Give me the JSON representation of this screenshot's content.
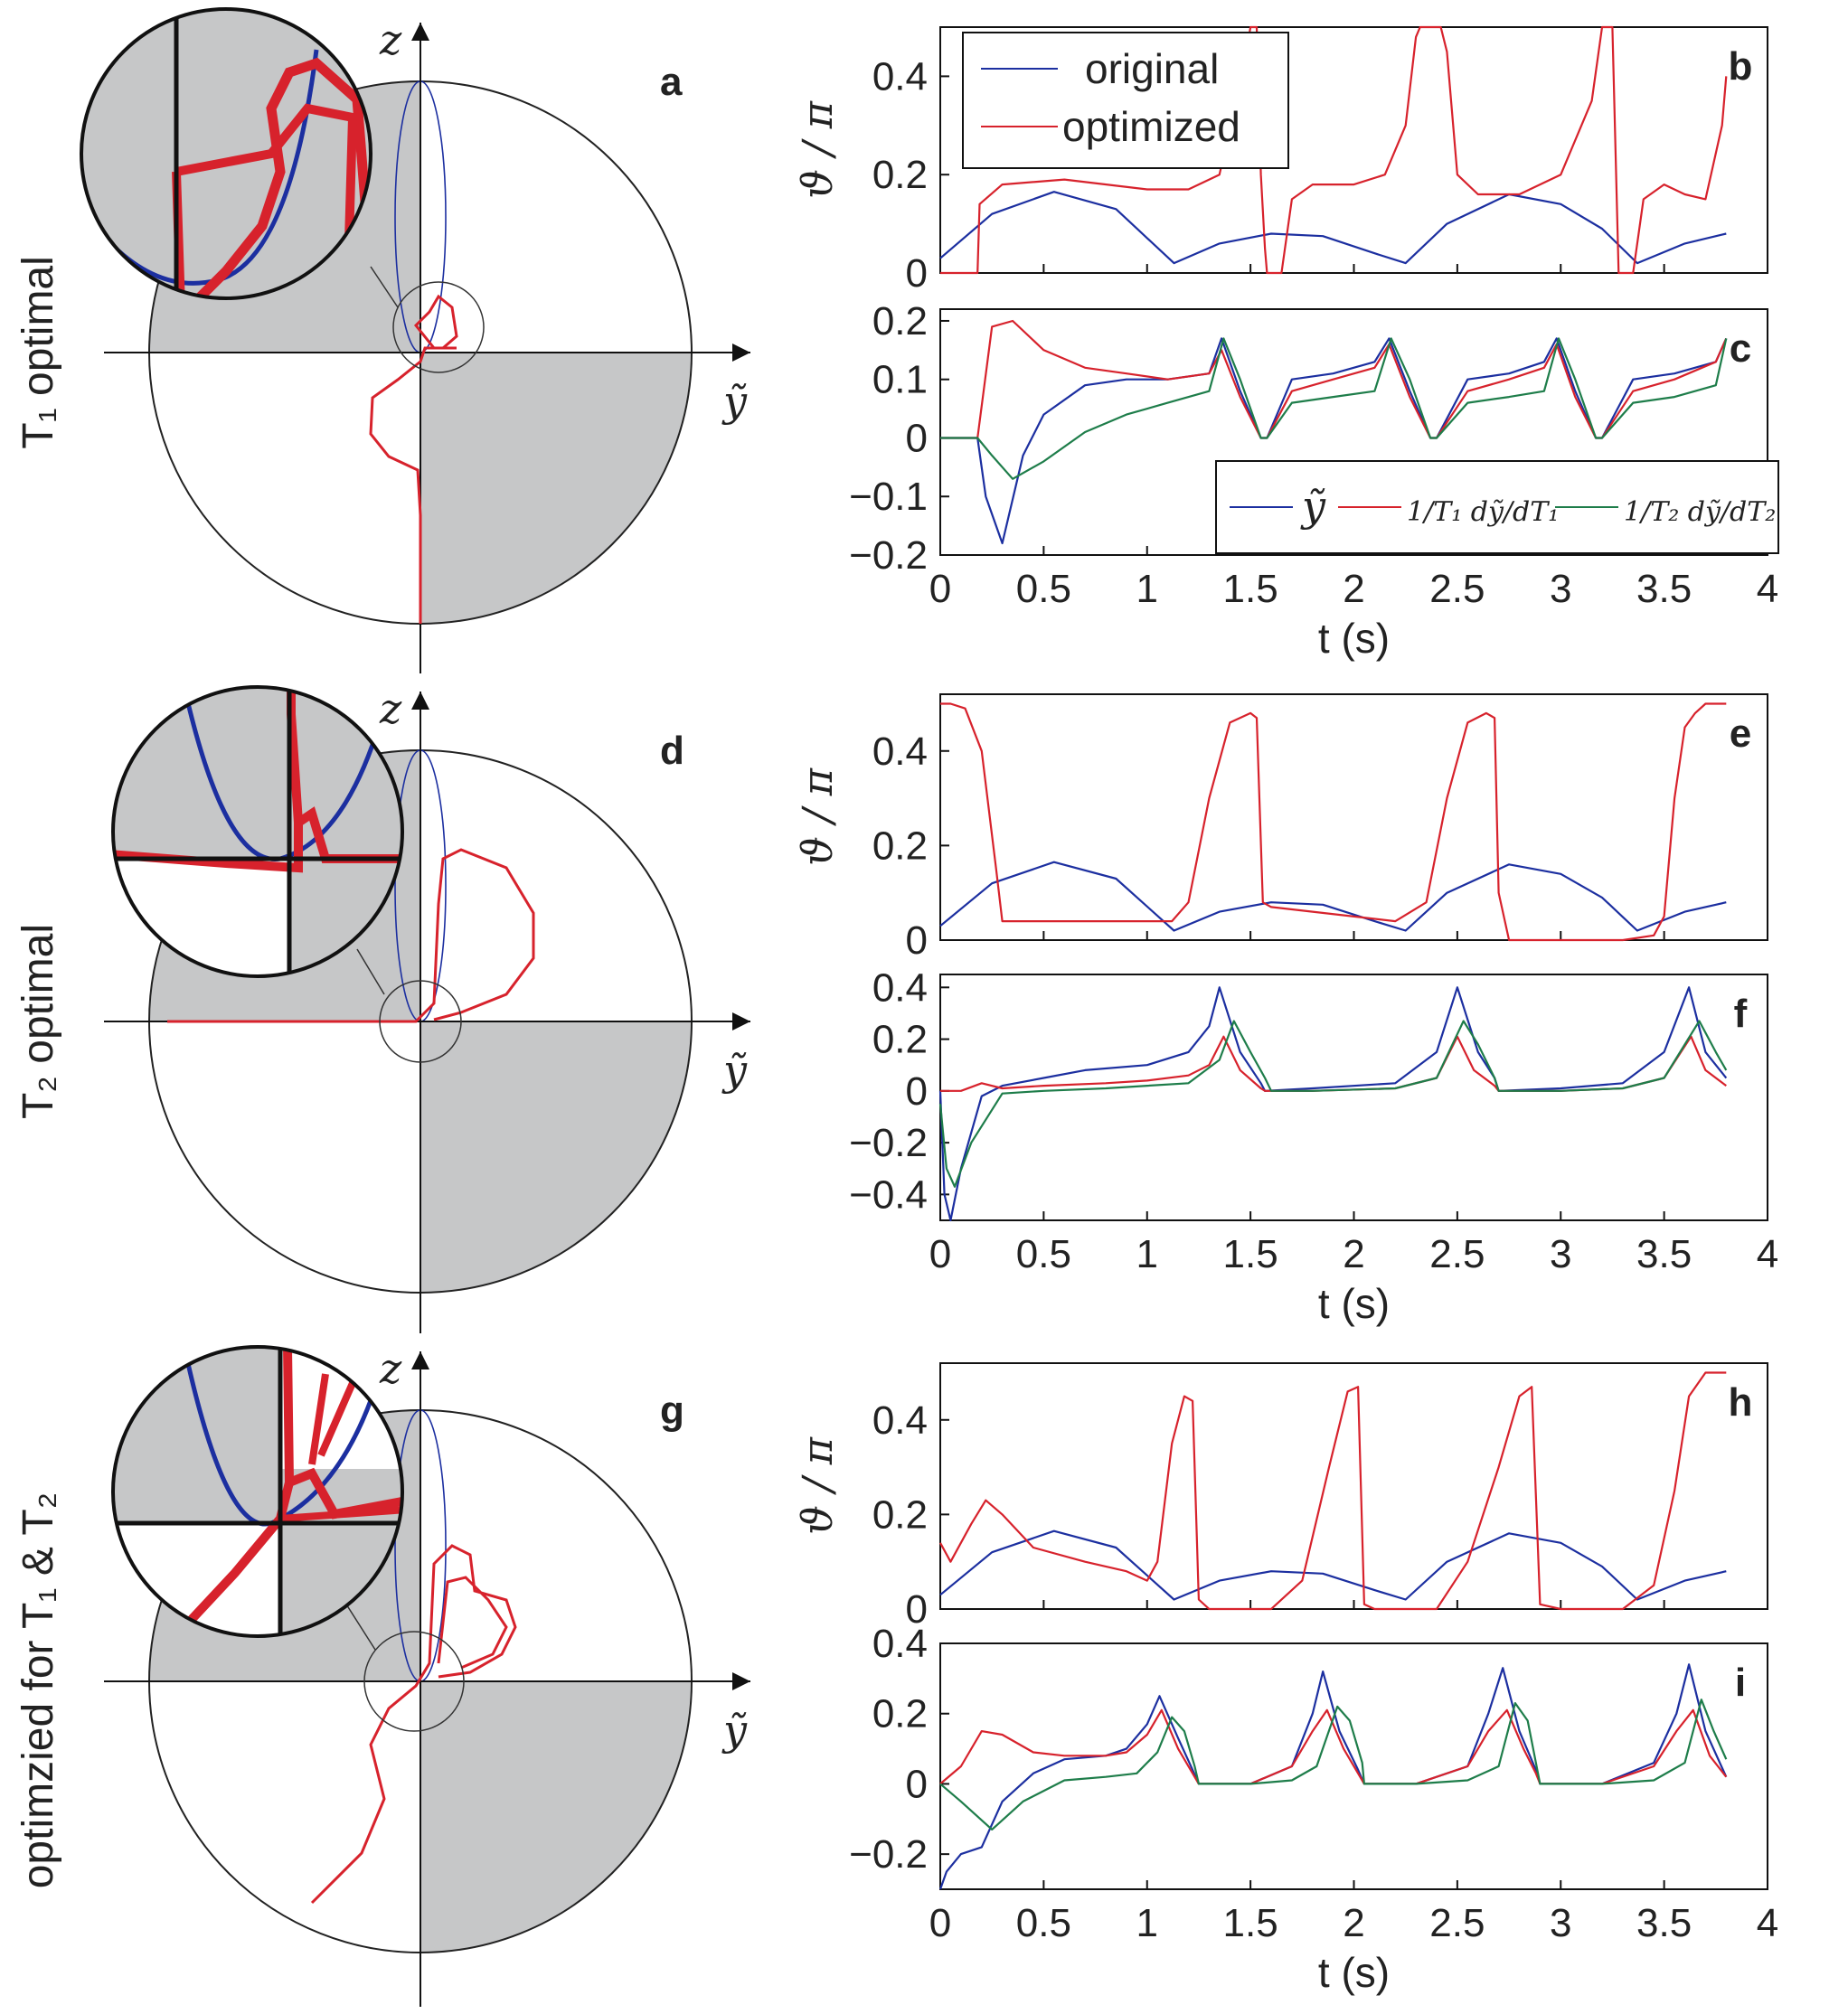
{
  "colors": {
    "blue": "#1c2fa0",
    "red": "#d7222c",
    "green": "#1e7d4a",
    "grey": "#c6c7c8",
    "axis": "#111111"
  },
  "rows": [
    {
      "row_label": "T₁ optimal",
      "circle_label": "a",
      "top_label": "b",
      "bottom_label": "c"
    },
    {
      "row_label": "T₂ optimal",
      "circle_label": "d",
      "top_label": "e",
      "bottom_label": "f"
    },
    {
      "row_label": "optimzied for T₁ & T₂",
      "circle_label": "g",
      "top_label": "h",
      "bottom_label": "i"
    }
  ],
  "circle_axes": {
    "z_label": "z",
    "y_label": "ỹ"
  },
  "legend_top": {
    "original": "original",
    "optimized": "optimized"
  },
  "legend_bottom": {
    "y": "ỹ",
    "d1": "1/T₁ dỹ/dT₁",
    "d2": "1/T₂ dỹ/dT₂"
  },
  "chart_data": [
    {
      "panel": "b",
      "type": "line",
      "xlabel": "",
      "ylabel": "ϑ / π",
      "xlim": [
        0,
        4
      ],
      "ylim": [
        0,
        0.5
      ],
      "yticks": [
        "0",
        "0.2",
        "0.4"
      ],
      "series": [
        {
          "name": "original",
          "x": [
            0,
            0.25,
            0.55,
            0.85,
            1.13,
            1.35,
            1.6,
            1.85,
            2.1,
            2.25,
            2.45,
            2.75,
            3.0,
            3.2,
            3.37,
            3.6,
            3.8
          ],
          "y": [
            0.03,
            0.12,
            0.165,
            0.13,
            0.02,
            0.06,
            0.08,
            0.075,
            0.04,
            0.02,
            0.1,
            0.16,
            0.14,
            0.09,
            0.02,
            0.06,
            0.08
          ]
        },
        {
          "name": "optimized",
          "x": [
            0,
            0.18,
            0.19,
            0.3,
            0.6,
            1.0,
            1.2,
            1.35,
            1.48,
            1.5,
            1.53,
            1.55,
            1.57,
            1.58,
            1.6,
            1.65,
            1.7,
            1.8,
            2.0,
            2.15,
            2.25,
            2.3,
            2.32,
            2.4,
            2.42,
            2.45,
            2.5,
            2.6,
            2.8,
            3.0,
            3.15,
            3.2,
            3.25,
            3.28,
            3.3,
            3.35,
            3.4,
            3.5,
            3.6,
            3.7,
            3.78,
            3.8
          ],
          "y": [
            0,
            0,
            0.14,
            0.18,
            0.19,
            0.17,
            0.17,
            0.2,
            0.45,
            0.5,
            0.5,
            0.2,
            0.05,
            0.0,
            0.0,
            0.0,
            0.15,
            0.18,
            0.18,
            0.2,
            0.3,
            0.48,
            0.5,
            0.5,
            0.5,
            0.45,
            0.2,
            0.16,
            0.16,
            0.2,
            0.35,
            0.5,
            0.5,
            0.0,
            0.0,
            0.0,
            0.15,
            0.18,
            0.16,
            0.15,
            0.3,
            0.4
          ]
        }
      ]
    },
    {
      "panel": "c",
      "type": "line",
      "xlabel": "t (s)",
      "ylabel": "",
      "xlim": [
        0,
        4
      ],
      "ylim": [
        -0.2,
        0.22
      ],
      "xticks": [
        "0",
        "0.5",
        "1",
        "1.5",
        "2",
        "2.5",
        "3",
        "3.5",
        "4"
      ],
      "yticks": [
        "−0.2",
        "−0.1",
        "0",
        "0.1",
        "0.2"
      ],
      "series": [
        {
          "name": "ỹ",
          "x": [
            0,
            0.18,
            0.22,
            0.3,
            0.4,
            0.5,
            0.7,
            0.9,
            1.1,
            1.3,
            1.36,
            1.45,
            1.55,
            1.58,
            1.7,
            1.9,
            2.1,
            2.17,
            2.27,
            2.37,
            2.4,
            2.55,
            2.75,
            2.92,
            2.98,
            3.07,
            3.17,
            3.2,
            3.35,
            3.55,
            3.75,
            3.8
          ],
          "y": [
            0,
            0,
            -0.1,
            -0.18,
            -0.03,
            0.04,
            0.09,
            0.1,
            0.1,
            0.11,
            0.17,
            0.08,
            0.0,
            0.0,
            0.1,
            0.11,
            0.13,
            0.17,
            0.08,
            0.0,
            0.0,
            0.1,
            0.11,
            0.13,
            0.17,
            0.08,
            0.0,
            0.0,
            0.1,
            0.11,
            0.13,
            0.17
          ]
        },
        {
          "name": "1/T₁ dỹ/dT₁",
          "x": [
            0,
            0.18,
            0.25,
            0.35,
            0.5,
            0.7,
            0.9,
            1.1,
            1.3,
            1.36,
            1.45,
            1.55,
            1.58,
            1.7,
            1.9,
            2.1,
            2.17,
            2.27,
            2.37,
            2.4,
            2.55,
            2.75,
            2.92,
            2.98,
            3.07,
            3.17,
            3.2,
            3.35,
            3.55,
            3.75,
            3.8
          ],
          "y": [
            0,
            0,
            0.19,
            0.2,
            0.15,
            0.12,
            0.11,
            0.1,
            0.11,
            0.15,
            0.07,
            0.0,
            0.0,
            0.08,
            0.1,
            0.12,
            0.16,
            0.07,
            0.0,
            0.0,
            0.08,
            0.1,
            0.12,
            0.16,
            0.07,
            0.0,
            0.0,
            0.08,
            0.1,
            0.13,
            0.17
          ]
        },
        {
          "name": "1/T₂ dỹ/dT₂",
          "x": [
            0,
            0.18,
            0.25,
            0.35,
            0.5,
            0.7,
            0.9,
            1.1,
            1.3,
            1.37,
            1.45,
            1.55,
            1.58,
            1.7,
            1.9,
            2.1,
            2.18,
            2.27,
            2.37,
            2.4,
            2.55,
            2.75,
            2.92,
            2.99,
            3.07,
            3.17,
            3.2,
            3.35,
            3.55,
            3.75,
            3.8
          ],
          "y": [
            0,
            0,
            -0.03,
            -0.07,
            -0.04,
            0.01,
            0.04,
            0.06,
            0.08,
            0.17,
            0.1,
            0.0,
            0.0,
            0.06,
            0.07,
            0.08,
            0.17,
            0.1,
            0.0,
            0.0,
            0.06,
            0.07,
            0.08,
            0.17,
            0.1,
            0.0,
            0.0,
            0.06,
            0.07,
            0.09,
            0.17
          ]
        }
      ]
    },
    {
      "panel": "e",
      "type": "line",
      "xlabel": "",
      "ylabel": "ϑ / π",
      "xlim": [
        0,
        4
      ],
      "ylim": [
        0,
        0.52
      ],
      "yticks": [
        "0",
        "0.2",
        "0.4"
      ],
      "series": [
        {
          "name": "original",
          "x": [
            0,
            0.25,
            0.55,
            0.85,
            1.13,
            1.35,
            1.6,
            1.85,
            2.1,
            2.25,
            2.45,
            2.75,
            3.0,
            3.2,
            3.37,
            3.6,
            3.8
          ],
          "y": [
            0.03,
            0.12,
            0.165,
            0.13,
            0.02,
            0.06,
            0.08,
            0.075,
            0.04,
            0.02,
            0.1,
            0.16,
            0.14,
            0.09,
            0.02,
            0.06,
            0.08
          ]
        },
        {
          "name": "optimized",
          "x": [
            0,
            0.05,
            0.12,
            0.2,
            0.27,
            0.3,
            0.4,
            0.7,
            1.0,
            1.12,
            1.2,
            1.3,
            1.4,
            1.5,
            1.53,
            1.56,
            1.6,
            1.8,
            2.2,
            2.35,
            2.45,
            2.55,
            2.64,
            2.68,
            2.7,
            2.75,
            3.0,
            3.3,
            3.45,
            3.5,
            3.55,
            3.6,
            3.65,
            3.7,
            3.8
          ],
          "y": [
            0.5,
            0.5,
            0.49,
            0.4,
            0.15,
            0.04,
            0.04,
            0.04,
            0.04,
            0.04,
            0.08,
            0.3,
            0.46,
            0.48,
            0.47,
            0.08,
            0.07,
            0.06,
            0.04,
            0.08,
            0.3,
            0.46,
            0.48,
            0.47,
            0.1,
            0.0,
            0.0,
            0.0,
            0.01,
            0.05,
            0.3,
            0.45,
            0.48,
            0.5,
            0.5
          ]
        }
      ]
    },
    {
      "panel": "f",
      "type": "line",
      "xlabel": "t (s)",
      "ylabel": "",
      "xlim": [
        0,
        4
      ],
      "ylim": [
        -0.5,
        0.45
      ],
      "xticks": [
        "0",
        "0.5",
        "1",
        "1.5",
        "2",
        "2.5",
        "3",
        "3.5",
        "4"
      ],
      "yticks": [
        "−0.4",
        "−0.2",
        "0",
        "0.2",
        "0.4"
      ],
      "series": [
        {
          "name": "ỹ",
          "x": [
            0,
            0.02,
            0.05,
            0.1,
            0.2,
            0.3,
            0.5,
            0.7,
            1.0,
            1.2,
            1.3,
            1.35,
            1.45,
            1.55,
            1.57,
            1.8,
            2.2,
            2.4,
            2.5,
            2.6,
            2.68,
            2.7,
            3.0,
            3.3,
            3.5,
            3.62,
            3.7,
            3.8
          ],
          "y": [
            0.0,
            -0.4,
            -0.5,
            -0.3,
            -0.02,
            0.02,
            0.05,
            0.08,
            0.1,
            0.15,
            0.25,
            0.4,
            0.15,
            0.03,
            0.0,
            0.01,
            0.03,
            0.15,
            0.4,
            0.15,
            0.05,
            0.0,
            0.01,
            0.03,
            0.15,
            0.4,
            0.15,
            0.05
          ]
        },
        {
          "name": "1/T₁ dỹ/dT₁",
          "x": [
            0,
            0.1,
            0.2,
            0.3,
            0.5,
            0.8,
            1.0,
            1.2,
            1.3,
            1.37,
            1.45,
            1.55,
            1.57,
            1.8,
            2.2,
            2.4,
            2.5,
            2.58,
            2.68,
            2.7,
            3.0,
            3.3,
            3.5,
            3.63,
            3.7,
            3.8
          ],
          "y": [
            0.0,
            0.0,
            0.03,
            0.01,
            0.02,
            0.03,
            0.04,
            0.06,
            0.1,
            0.21,
            0.08,
            0.01,
            0.0,
            0.0,
            0.01,
            0.05,
            0.21,
            0.08,
            0.02,
            0.0,
            0.0,
            0.01,
            0.05,
            0.21,
            0.08,
            0.02
          ]
        },
        {
          "name": "1/T₂ dỹ/dT₂",
          "x": [
            0,
            0.03,
            0.07,
            0.15,
            0.3,
            0.5,
            0.8,
            1.0,
            1.2,
            1.35,
            1.42,
            1.5,
            1.57,
            1.6,
            1.8,
            2.2,
            2.4,
            2.53,
            2.6,
            2.68,
            2.7,
            3.0,
            3.3,
            3.5,
            3.67,
            3.75,
            3.8
          ],
          "y": [
            -0.05,
            -0.3,
            -0.37,
            -0.2,
            -0.01,
            0.0,
            0.01,
            0.02,
            0.03,
            0.12,
            0.27,
            0.15,
            0.05,
            0.0,
            0.0,
            0.01,
            0.05,
            0.27,
            0.18,
            0.05,
            0.0,
            0.0,
            0.01,
            0.05,
            0.27,
            0.15,
            0.08
          ]
        }
      ]
    },
    {
      "panel": "h",
      "type": "line",
      "xlabel": "",
      "ylabel": "ϑ / π",
      "xlim": [
        0,
        4
      ],
      "ylim": [
        0,
        0.52
      ],
      "yticks": [
        "0",
        "0.2",
        "0.4"
      ],
      "series": [
        {
          "name": "original",
          "x": [
            0,
            0.25,
            0.55,
            0.85,
            1.13,
            1.35,
            1.6,
            1.85,
            2.1,
            2.25,
            2.45,
            2.75,
            3.0,
            3.2,
            3.37,
            3.6,
            3.8
          ],
          "y": [
            0.03,
            0.12,
            0.165,
            0.13,
            0.02,
            0.06,
            0.08,
            0.075,
            0.04,
            0.02,
            0.1,
            0.16,
            0.14,
            0.09,
            0.02,
            0.06,
            0.08
          ]
        },
        {
          "name": "optimized",
          "x": [
            0,
            0.05,
            0.15,
            0.22,
            0.3,
            0.45,
            0.7,
            0.9,
            1.0,
            1.05,
            1.12,
            1.18,
            1.22,
            1.25,
            1.3,
            1.6,
            1.75,
            1.88,
            1.97,
            2.02,
            2.05,
            2.1,
            2.4,
            2.55,
            2.7,
            2.8,
            2.86,
            2.9,
            3.0,
            3.3,
            3.45,
            3.55,
            3.62,
            3.7,
            3.8
          ],
          "y": [
            0.14,
            0.1,
            0.18,
            0.23,
            0.2,
            0.13,
            0.1,
            0.08,
            0.06,
            0.1,
            0.35,
            0.45,
            0.44,
            0.02,
            0.0,
            0.0,
            0.06,
            0.3,
            0.46,
            0.47,
            0.01,
            0.0,
            0.0,
            0.1,
            0.3,
            0.45,
            0.47,
            0.01,
            0.0,
            0.0,
            0.05,
            0.25,
            0.45,
            0.5,
            0.5
          ]
        }
      ]
    },
    {
      "panel": "i",
      "type": "line",
      "xlabel": "t (s)",
      "ylabel": "",
      "xlim": [
        0,
        4
      ],
      "ylim": [
        -0.3,
        0.4
      ],
      "xticks": [
        "0",
        "0.5",
        "1",
        "1.5",
        "2",
        "2.5",
        "3",
        "3.5",
        "4"
      ],
      "yticks": [
        "−0.2",
        "0",
        "0.2",
        "0.4"
      ],
      "series": [
        {
          "name": "ỹ",
          "x": [
            0,
            0.03,
            0.1,
            0.2,
            0.3,
            0.45,
            0.6,
            0.8,
            0.9,
            1.0,
            1.06,
            1.15,
            1.22,
            1.25,
            1.5,
            1.7,
            1.8,
            1.85,
            1.93,
            2.02,
            2.05,
            2.3,
            2.55,
            2.65,
            2.72,
            2.8,
            2.88,
            2.9,
            3.2,
            3.45,
            3.56,
            3.62,
            3.7,
            3.8
          ],
          "y": [
            -0.3,
            -0.25,
            -0.2,
            -0.18,
            -0.05,
            0.03,
            0.07,
            0.08,
            0.1,
            0.17,
            0.25,
            0.13,
            0.04,
            0.0,
            0.0,
            0.05,
            0.2,
            0.32,
            0.15,
            0.04,
            0.0,
            0.0,
            0.05,
            0.2,
            0.33,
            0.15,
            0.04,
            0.0,
            0.0,
            0.06,
            0.2,
            0.34,
            0.15,
            0.02
          ]
        },
        {
          "name": "1/T₁ dỹ/dT₁",
          "x": [
            0,
            0.1,
            0.2,
            0.3,
            0.45,
            0.6,
            0.8,
            0.9,
            1.0,
            1.07,
            1.15,
            1.22,
            1.25,
            1.5,
            1.7,
            1.8,
            1.87,
            1.95,
            2.02,
            2.05,
            2.3,
            2.55,
            2.65,
            2.74,
            2.82,
            2.88,
            2.9,
            3.2,
            3.45,
            3.56,
            3.64,
            3.72,
            3.8
          ],
          "y": [
            0.0,
            0.05,
            0.15,
            0.14,
            0.09,
            0.08,
            0.08,
            0.09,
            0.14,
            0.21,
            0.1,
            0.03,
            0.0,
            0.0,
            0.05,
            0.15,
            0.21,
            0.1,
            0.03,
            0.0,
            0.0,
            0.05,
            0.15,
            0.21,
            0.1,
            0.03,
            0.0,
            0.0,
            0.05,
            0.15,
            0.21,
            0.08,
            0.02
          ]
        },
        {
          "name": "1/T₂ dỹ/dT₂",
          "x": [
            0,
            0.1,
            0.25,
            0.4,
            0.6,
            0.8,
            0.95,
            1.05,
            1.12,
            1.18,
            1.23,
            1.25,
            1.5,
            1.7,
            1.82,
            1.92,
            1.98,
            2.04,
            2.05,
            2.3,
            2.55,
            2.7,
            2.78,
            2.84,
            2.9,
            3.2,
            3.45,
            3.6,
            3.68,
            3.74,
            3.8
          ],
          "y": [
            0.0,
            -0.05,
            -0.13,
            -0.05,
            0.01,
            0.02,
            0.03,
            0.09,
            0.19,
            0.15,
            0.05,
            0.0,
            0.0,
            0.01,
            0.05,
            0.22,
            0.18,
            0.06,
            0.0,
            0.0,
            0.01,
            0.05,
            0.23,
            0.18,
            0.0,
            0.0,
            0.01,
            0.06,
            0.24,
            0.15,
            0.07
          ]
        }
      ]
    }
  ]
}
